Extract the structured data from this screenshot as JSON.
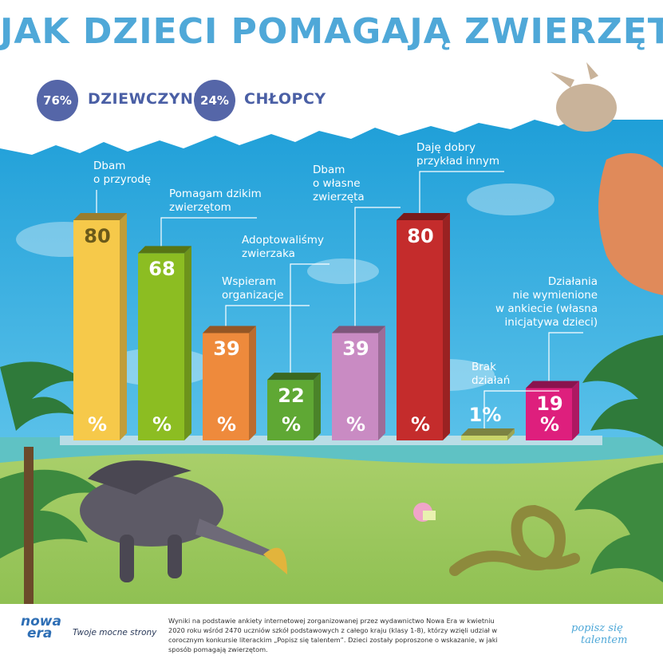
{
  "title": "JAK DZIECI POMAGAJĄ ZWIERZĘTOM",
  "stats": [
    {
      "value": "76%",
      "label": "DZIEWCZYNKI"
    },
    {
      "value": "24%",
      "label": "CHŁOPCY"
    }
  ],
  "chart_data": {
    "type": "bar",
    "unit": "%",
    "categories": [
      "Dbam o przyrodę",
      "Pomagam dzikim zwierzętom",
      "Wspieram organizacje",
      "Adoptowaliśmy zwierzaka",
      "Dbam o własne zwierzęta",
      "Daję dobry przykład innym",
      "Brak działań",
      "Działania nie wymienione w ankiecie (własna inicjatywa dzieci)"
    ],
    "values": [
      80,
      68,
      39,
      22,
      39,
      80,
      1,
      19
    ],
    "colors": [
      "#f6c94a",
      "#8cbd22",
      "#ee8a3c",
      "#5fa834",
      "#c98bc3",
      "#c42c2c",
      "#c8d46a",
      "#de1f7d"
    ],
    "label_lines": [
      [
        "Dbam",
        "o przyrodę"
      ],
      [
        "Pomagam dzikim",
        "zwierzętom"
      ],
      [
        "Wspieram",
        "organizacje"
      ],
      [
        "Adoptowaliśmy",
        "zwierzaka"
      ],
      [
        "Dbam",
        "o własne",
        "zwierzęta"
      ],
      [
        "Daję dobry",
        "przykład innym"
      ],
      [
        "Brak",
        "działań"
      ],
      [
        "Działania",
        "nie wymienione",
        "w ankiecie (własna",
        "inicjatywa dzieci)"
      ]
    ],
    "value_labels": [
      "80",
      "68",
      "39",
      "22",
      "39",
      "80",
      "1%",
      "19"
    ],
    "percent_signs": [
      "%",
      "%",
      "%",
      "%",
      "%",
      "%",
      "",
      "%"
    ]
  },
  "footer": {
    "logo_line1": "nowa",
    "logo_line2": "era",
    "slogan": "Twoje mocne strony",
    "note": "Wyniki na podstawie ankiety internetowej zorganizowanej przez wydawnictwo Nowa Era w kwietniu 2020 roku wśród 2470 uczniów szkół podstawowych z całego kraju (klasy 1-8), którzy wzięli udział w corocznym konkursie literackim „Popisz się talentem”. Dzieci zostały poproszone o wskazanie, w jaki sposób pomagają zwierzętom.",
    "brand_line1": "popisz się",
    "brand_line2": "talentem"
  }
}
